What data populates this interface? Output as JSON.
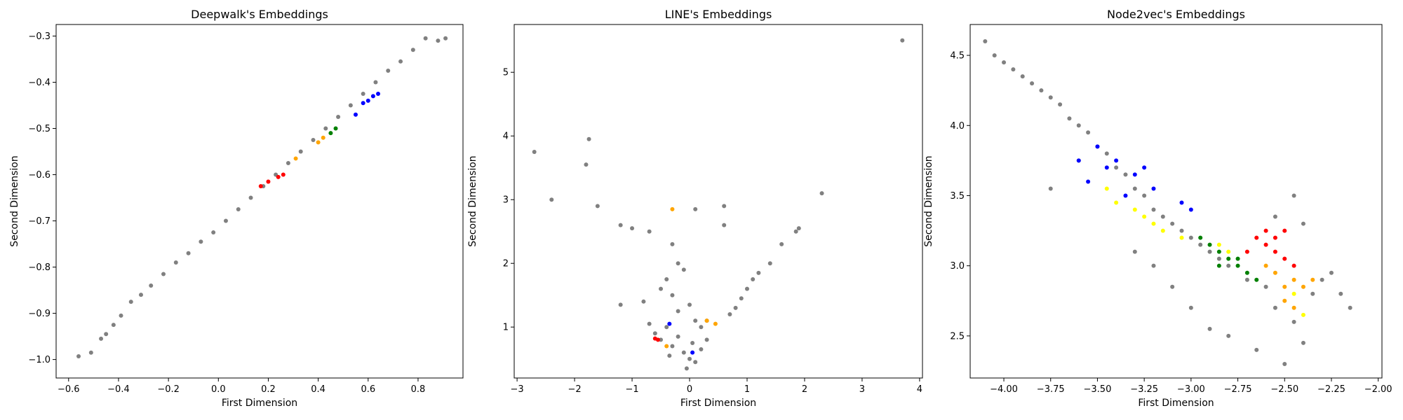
{
  "chart_data": [
    {
      "type": "scatter",
      "title": "Deepwalk's Embeddings",
      "xlabel": "First Dimension",
      "ylabel": "Second Dimension",
      "xlim": [
        -0.65,
        0.98
      ],
      "ylim": [
        -1.04,
        -0.275
      ],
      "xticks": [
        -0.6,
        -0.4,
        -0.2,
        0.0,
        0.2,
        0.4,
        0.6,
        0.8
      ],
      "yticks": [
        -1.0,
        -0.9,
        -0.8,
        -0.7,
        -0.6,
        -0.5,
        -0.4,
        -0.3
      ],
      "xtick_labels": [
        "−0.6",
        "−0.4",
        "−0.2",
        "0.0",
        "0.2",
        "0.4",
        "0.6",
        "0.8"
      ],
      "ytick_labels": [
        "−1.0",
        "−0.9",
        "−0.8",
        "−0.7",
        "−0.6",
        "−0.5",
        "−0.4",
        "−0.3"
      ],
      "colors": {
        "gray": "#808080",
        "blue": "#0000ff",
        "red": "#ff0000",
        "orange": "#ffa500",
        "green": "#008000",
        "yellow": "#ffff00"
      },
      "series": [
        {
          "color": "gray",
          "points": [
            [
              -0.56,
              -0.993
            ],
            [
              -0.51,
              -0.985
            ],
            [
              -0.47,
              -0.955
            ],
            [
              -0.45,
              -0.945
            ],
            [
              -0.42,
              -0.925
            ],
            [
              -0.39,
              -0.905
            ],
            [
              -0.35,
              -0.875
            ],
            [
              -0.31,
              -0.86
            ],
            [
              -0.27,
              -0.84
            ],
            [
              -0.22,
              -0.815
            ],
            [
              -0.17,
              -0.79
            ],
            [
              -0.12,
              -0.77
            ],
            [
              -0.07,
              -0.745
            ],
            [
              -0.02,
              -0.725
            ],
            [
              0.03,
              -0.7
            ],
            [
              0.08,
              -0.675
            ],
            [
              0.13,
              -0.65
            ],
            [
              0.18,
              -0.625
            ],
            [
              0.23,
              -0.6
            ],
            [
              0.28,
              -0.575
            ],
            [
              0.33,
              -0.55
            ],
            [
              0.38,
              -0.525
            ],
            [
              0.43,
              -0.5
            ],
            [
              0.48,
              -0.475
            ],
            [
              0.53,
              -0.45
            ],
            [
              0.58,
              -0.425
            ],
            [
              0.63,
              -0.4
            ],
            [
              0.68,
              -0.375
            ],
            [
              0.73,
              -0.355
            ],
            [
              0.78,
              -0.33
            ],
            [
              0.83,
              -0.305
            ],
            [
              0.88,
              -0.31
            ],
            [
              0.91,
              -0.305
            ]
          ]
        },
        {
          "color": "blue",
          "points": [
            [
              0.55,
              -0.47
            ],
            [
              0.58,
              -0.445
            ],
            [
              0.6,
              -0.44
            ],
            [
              0.62,
              -0.43
            ],
            [
              0.64,
              -0.425
            ]
          ]
        },
        {
          "color": "red",
          "points": [
            [
              0.17,
              -0.625
            ],
            [
              0.2,
              -0.615
            ],
            [
              0.24,
              -0.605
            ],
            [
              0.26,
              -0.6
            ]
          ]
        },
        {
          "color": "orange",
          "points": [
            [
              0.31,
              -0.565
            ],
            [
              0.4,
              -0.53
            ],
            [
              0.42,
              -0.52
            ]
          ]
        },
        {
          "color": "green",
          "points": [
            [
              0.45,
              -0.51
            ],
            [
              0.47,
              -0.5
            ]
          ]
        }
      ]
    },
    {
      "type": "scatter",
      "title": "LINE's Embeddings",
      "xlabel": "First Dimension",
      "ylabel": "Second Dimension",
      "xlim": [
        -3.05,
        4.05
      ],
      "ylim": [
        0.2,
        5.75
      ],
      "xticks": [
        -3,
        -2,
        -1,
        0,
        1,
        2,
        3,
        4
      ],
      "yticks": [
        1,
        2,
        3,
        4,
        5
      ],
      "xtick_labels": [
        "−3",
        "−2",
        "−1",
        "0",
        "1",
        "2",
        "3",
        "4"
      ],
      "ytick_labels": [
        "1",
        "2",
        "3",
        "4",
        "5"
      ],
      "colors": {
        "gray": "#808080",
        "blue": "#0000ff",
        "red": "#ff0000",
        "orange": "#ffa500",
        "green": "#008000",
        "yellow": "#ffff00"
      },
      "series": [
        {
          "color": "gray",
          "points": [
            [
              3.7,
              5.5
            ],
            [
              -2.7,
              3.75
            ],
            [
              -2.4,
              3.0
            ],
            [
              -1.8,
              3.55
            ],
            [
              -1.75,
              3.95
            ],
            [
              -1.6,
              2.9
            ],
            [
              -1.2,
              2.6
            ],
            [
              -1.0,
              2.55
            ],
            [
              -0.7,
              2.5
            ],
            [
              -0.3,
              2.3
            ],
            [
              0.1,
              2.85
            ],
            [
              0.6,
              2.9
            ],
            [
              0.6,
              2.6
            ],
            [
              2.3,
              3.1
            ],
            [
              1.9,
              2.55
            ],
            [
              1.85,
              2.5
            ],
            [
              1.6,
              2.3
            ],
            [
              1.4,
              2.0
            ],
            [
              1.2,
              1.85
            ],
            [
              1.1,
              1.75
            ],
            [
              1.0,
              1.6
            ],
            [
              0.9,
              1.45
            ],
            [
              0.8,
              1.3
            ],
            [
              0.7,
              1.2
            ],
            [
              -1.2,
              1.35
            ],
            [
              -0.8,
              1.4
            ],
            [
              -0.5,
              1.6
            ],
            [
              -0.4,
              1.75
            ],
            [
              -0.2,
              2.0
            ],
            [
              -0.1,
              1.9
            ],
            [
              -0.3,
              1.5
            ],
            [
              0.0,
              1.35
            ],
            [
              -0.2,
              1.25
            ],
            [
              0.1,
              1.1
            ],
            [
              -0.4,
              1.0
            ],
            [
              -0.6,
              0.9
            ],
            [
              -0.5,
              0.8
            ],
            [
              -0.3,
              0.7
            ],
            [
              -0.1,
              0.6
            ],
            [
              0.0,
              0.5
            ],
            [
              0.1,
              0.45
            ],
            [
              0.2,
              0.65
            ],
            [
              0.3,
              0.8
            ],
            [
              0.2,
              1.0
            ],
            [
              -0.2,
              0.85
            ],
            [
              0.05,
              0.75
            ],
            [
              -0.05,
              0.35
            ],
            [
              0.3,
              1.1
            ],
            [
              -0.7,
              1.05
            ],
            [
              -0.35,
              0.55
            ]
          ]
        },
        {
          "color": "orange",
          "points": [
            [
              -0.3,
              2.85
            ],
            [
              0.3,
              1.1
            ],
            [
              0.45,
              1.05
            ],
            [
              -0.4,
              0.7
            ]
          ]
        },
        {
          "color": "blue",
          "points": [
            [
              -0.35,
              1.05
            ],
            [
              0.05,
              0.6
            ]
          ]
        },
        {
          "color": "red",
          "points": [
            [
              -0.6,
              0.82
            ],
            [
              -0.55,
              0.8
            ]
          ]
        }
      ]
    },
    {
      "type": "scatter",
      "title": "Node2vec's Embeddings",
      "xlabel": "First Dimension",
      "ylabel": "Second Dimension",
      "xlim": [
        -4.18,
        -1.98
      ],
      "ylim": [
        2.2,
        4.72
      ],
      "xticks": [
        -4.0,
        -3.75,
        -3.5,
        -3.25,
        -3.0,
        -2.75,
        -2.5,
        -2.25,
        -2.0
      ],
      "yticks": [
        2.5,
        3.0,
        3.5,
        4.0,
        4.5
      ],
      "xtick_labels": [
        "−4.00",
        "−3.75",
        "−3.50",
        "−3.25",
        "−3.00",
        "−2.75",
        "−2.50",
        "−2.25",
        "−2.00"
      ],
      "ytick_labels": [
        "2.5",
        "3.0",
        "3.5",
        "4.0",
        "4.5"
      ],
      "colors": {
        "gray": "#808080",
        "blue": "#0000ff",
        "red": "#ff0000",
        "orange": "#ffa500",
        "green": "#008000",
        "yellow": "#ffff00"
      },
      "series": [
        {
          "color": "gray",
          "points": [
            [
              -4.1,
              4.6
            ],
            [
              -4.05,
              4.5
            ],
            [
              -4.0,
              4.45
            ],
            [
              -3.95,
              4.4
            ],
            [
              -3.9,
              4.35
            ],
            [
              -3.85,
              4.3
            ],
            [
              -3.8,
              4.25
            ],
            [
              -3.75,
              4.2
            ],
            [
              -3.7,
              4.15
            ],
            [
              -3.65,
              4.05
            ],
            [
              -3.6,
              4.0
            ],
            [
              -3.55,
              3.95
            ],
            [
              -3.5,
              3.85
            ],
            [
              -3.45,
              3.8
            ],
            [
              -3.4,
              3.7
            ],
            [
              -3.35,
              3.65
            ],
            [
              -3.3,
              3.55
            ],
            [
              -3.25,
              3.5
            ],
            [
              -3.2,
              3.4
            ],
            [
              -3.15,
              3.35
            ],
            [
              -3.1,
              3.3
            ],
            [
              -3.05,
              3.25
            ],
            [
              -3.0,
              3.2
            ],
            [
              -2.95,
              3.15
            ],
            [
              -2.9,
              3.1
            ],
            [
              -2.85,
              3.05
            ],
            [
              -2.8,
              3.0
            ],
            [
              -2.7,
              2.9
            ],
            [
              -2.6,
              2.85
            ],
            [
              -2.55,
              2.7
            ],
            [
              -2.45,
              2.6
            ],
            [
              -2.4,
              2.45
            ],
            [
              -2.5,
              2.3
            ],
            [
              -2.35,
              2.8
            ],
            [
              -2.3,
              2.9
            ],
            [
              -2.25,
              2.95
            ],
            [
              -2.2,
              2.8
            ],
            [
              -2.15,
              2.7
            ],
            [
              -2.45,
              3.5
            ],
            [
              -2.4,
              3.3
            ],
            [
              -2.55,
              3.35
            ],
            [
              -3.1,
              2.85
            ],
            [
              -3.0,
              2.7
            ],
            [
              -2.9,
              2.55
            ],
            [
              -2.8,
              2.5
            ],
            [
              -3.75,
              3.55
            ],
            [
              -3.6,
              3.75
            ],
            [
              -3.3,
              3.1
            ],
            [
              -3.2,
              3.0
            ],
            [
              -2.65,
              2.4
            ]
          ]
        },
        {
          "color": "blue",
          "points": [
            [
              -3.55,
              3.6
            ],
            [
              -3.5,
              3.85
            ],
            [
              -3.45,
              3.7
            ],
            [
              -3.4,
              3.75
            ],
            [
              -3.35,
              3.5
            ],
            [
              -3.3,
              3.65
            ],
            [
              -3.25,
              3.7
            ],
            [
              -3.2,
              3.55
            ],
            [
              -3.05,
              3.45
            ],
            [
              -3.0,
              3.4
            ],
            [
              -3.6,
              3.75
            ]
          ]
        },
        {
          "color": "yellow",
          "points": [
            [
              -3.45,
              3.55
            ],
            [
              -3.4,
              3.45
            ],
            [
              -3.3,
              3.4
            ],
            [
              -3.25,
              3.35
            ],
            [
              -3.2,
              3.3
            ],
            [
              -3.15,
              3.25
            ],
            [
              -3.05,
              3.2
            ],
            [
              -2.85,
              3.15
            ],
            [
              -2.8,
              3.1
            ],
            [
              -2.45,
              2.8
            ],
            [
              -2.4,
              2.65
            ]
          ]
        },
        {
          "color": "green",
          "points": [
            [
              -2.95,
              3.2
            ],
            [
              -2.9,
              3.15
            ],
            [
              -2.85,
              3.1
            ],
            [
              -2.8,
              3.05
            ],
            [
              -2.75,
              3.0
            ],
            [
              -2.7,
              2.95
            ],
            [
              -2.65,
              2.9
            ],
            [
              -2.85,
              3.0
            ],
            [
              -2.75,
              3.05
            ]
          ]
        },
        {
          "color": "red",
          "points": [
            [
              -2.7,
              3.1
            ],
            [
              -2.65,
              3.2
            ],
            [
              -2.6,
              3.15
            ],
            [
              -2.55,
              3.1
            ],
            [
              -2.5,
              3.05
            ],
            [
              -2.45,
              3.0
            ],
            [
              -2.6,
              3.25
            ],
            [
              -2.55,
              3.2
            ],
            [
              -2.5,
              3.25
            ]
          ]
        },
        {
          "color": "orange",
          "points": [
            [
              -2.6,
              3.0
            ],
            [
              -2.55,
              2.95
            ],
            [
              -2.5,
              2.85
            ],
            [
              -2.45,
              2.9
            ],
            [
              -2.4,
              2.85
            ],
            [
              -2.35,
              2.9
            ],
            [
              -2.5,
              2.75
            ],
            [
              -2.45,
              2.7
            ]
          ]
        }
      ]
    }
  ]
}
